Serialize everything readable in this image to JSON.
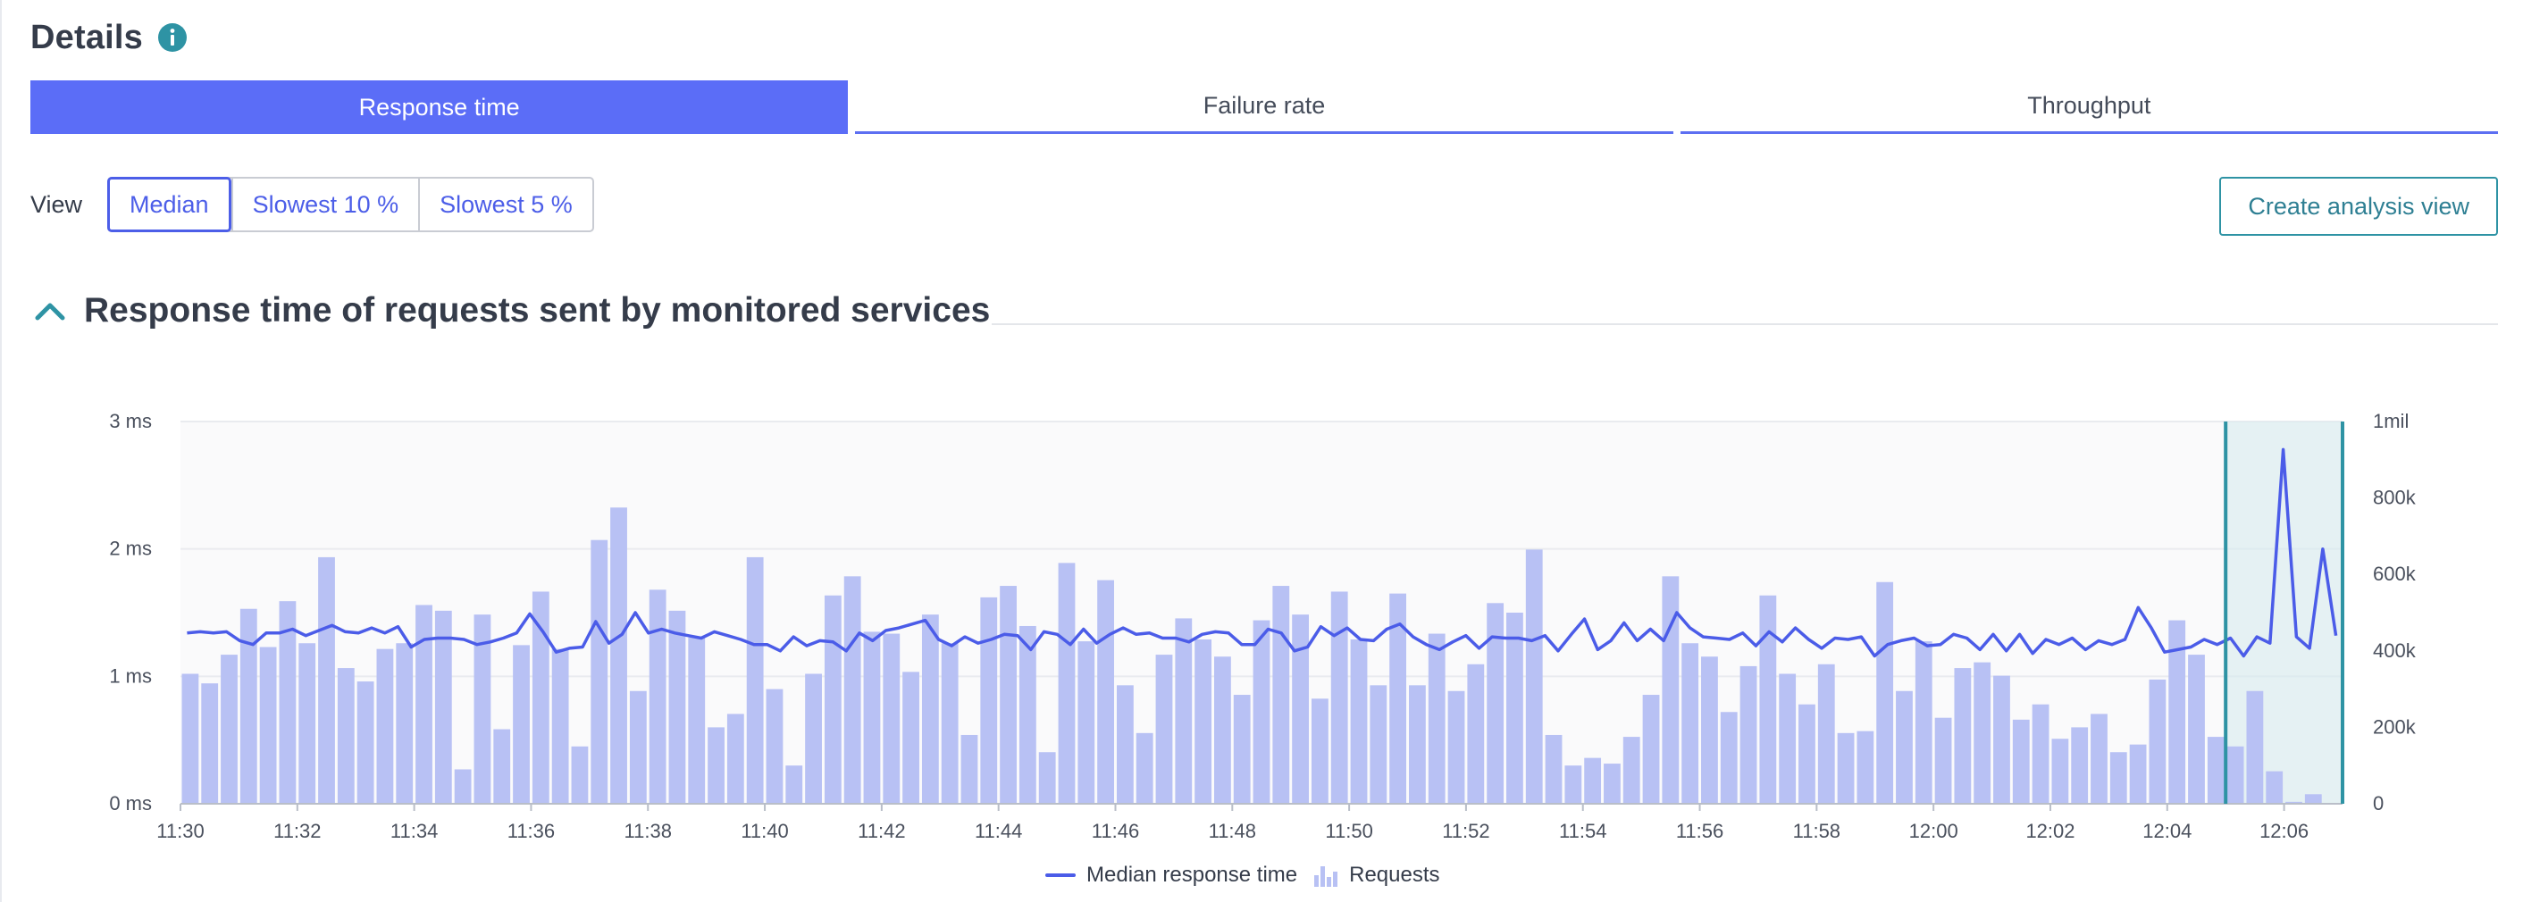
{
  "header": {
    "title": "Details"
  },
  "tabs": [
    {
      "label": "Response time",
      "active": true
    },
    {
      "label": "Failure rate",
      "active": false
    },
    {
      "label": "Throughput",
      "active": false
    }
  ],
  "view": {
    "label": "View",
    "options": [
      "Median",
      "Slowest 10 %",
      "Slowest 5 %"
    ],
    "selected": "Median",
    "create_label": "Create analysis view"
  },
  "section": {
    "title": "Response time of requests sent by monitored services",
    "expanded": true
  },
  "legend": {
    "line": "Median response time",
    "bars": "Requests"
  },
  "colors": {
    "accent": "#5b6df7",
    "bar": "#b8c1f4",
    "line": "#4b5ce8",
    "highlight": "#2e93a4"
  },
  "chart_data": {
    "type": "bar",
    "x_ticks": [
      "11:30",
      "11:32",
      "11:34",
      "11:36",
      "11:38",
      "11:40",
      "11:42",
      "11:44",
      "11:46",
      "11:48",
      "11:50",
      "11:52",
      "11:54",
      "11:56",
      "11:58",
      "12:00",
      "12:02",
      "12:04",
      "12:06"
    ],
    "y_left": {
      "ticks": [
        "0 ms",
        "1 ms",
        "2 ms",
        "3 ms"
      ],
      "range": [
        0,
        3
      ]
    },
    "y_right": {
      "ticks": [
        "0",
        "200k",
        "400k",
        "600k",
        "800k",
        "1mil"
      ],
      "range": [
        0,
        1000000
      ]
    },
    "x_range": [
      "11:30",
      "12:07"
    ],
    "grid": true,
    "legend_position": "bottom-center",
    "highlight_range": [
      "12:05",
      "12:07"
    ],
    "series": [
      {
        "name": "Requests",
        "type": "bar",
        "axis": "right",
        "values": [
          340000,
          315000,
          390000,
          510000,
          410000,
          530000,
          420000,
          645000,
          355000,
          320000,
          405000,
          420000,
          520000,
          505000,
          90000,
          495000,
          195000,
          415000,
          555000,
          405000,
          150000,
          690000,
          775000,
          295000,
          560000,
          505000,
          435000,
          200000,
          235000,
          645000,
          300000,
          100000,
          340000,
          545000,
          595000,
          450000,
          445000,
          345000,
          495000,
          420000,
          180000,
          540000,
          570000,
          465000,
          135000,
          630000,
          425000,
          585000,
          310000,
          185000,
          390000,
          485000,
          430000,
          385000,
          285000,
          480000,
          570000,
          495000,
          275000,
          555000,
          430000,
          310000,
          550000,
          310000,
          445000,
          295000,
          365000,
          525000,
          500000,
          665000,
          180000,
          100000,
          120000,
          105000,
          175000,
          285000,
          595000,
          420000,
          385000,
          240000,
          360000,
          545000,
          340000,
          260000,
          365000,
          185000,
          190000,
          580000,
          295000,
          425000,
          225000,
          355000,
          370000,
          335000,
          220000,
          260000,
          170000,
          200000,
          235000,
          135000,
          155000,
          325000,
          480000,
          390000,
          175000,
          150000,
          295000,
          85000,
          5000,
          25000,
          0
        ],
        "color": "#b8c1f4"
      },
      {
        "name": "Median response time",
        "type": "line",
        "axis": "left",
        "unit": "ms",
        "values": [
          1.34,
          1.35,
          1.34,
          1.35,
          1.28,
          1.25,
          1.34,
          1.34,
          1.37,
          1.32,
          1.36,
          1.4,
          1.35,
          1.34,
          1.38,
          1.34,
          1.39,
          1.23,
          1.29,
          1.3,
          1.3,
          1.29,
          1.25,
          1.27,
          1.3,
          1.34,
          1.49,
          1.35,
          1.19,
          1.22,
          1.23,
          1.43,
          1.26,
          1.33,
          1.5,
          1.34,
          1.37,
          1.34,
          1.32,
          1.3,
          1.35,
          1.32,
          1.29,
          1.25,
          1.25,
          1.2,
          1.31,
          1.24,
          1.28,
          1.27,
          1.2,
          1.34,
          1.28,
          1.36,
          1.38,
          1.41,
          1.44,
          1.29,
          1.24,
          1.31,
          1.26,
          1.29,
          1.33,
          1.32,
          1.21,
          1.35,
          1.33,
          1.25,
          1.37,
          1.26,
          1.33,
          1.38,
          1.33,
          1.34,
          1.3,
          1.3,
          1.27,
          1.33,
          1.35,
          1.34,
          1.25,
          1.25,
          1.37,
          1.34,
          1.2,
          1.23,
          1.39,
          1.32,
          1.38,
          1.29,
          1.28,
          1.37,
          1.41,
          1.31,
          1.25,
          1.21,
          1.27,
          1.32,
          1.22,
          1.31,
          1.3,
          1.3,
          1.28,
          1.32,
          1.2,
          1.33,
          1.45,
          1.21,
          1.28,
          1.42,
          1.28,
          1.37,
          1.28,
          1.5,
          1.38,
          1.31,
          1.3,
          1.29,
          1.34,
          1.24,
          1.35,
          1.27,
          1.38,
          1.29,
          1.22,
          1.3,
          1.29,
          1.31,
          1.16,
          1.25,
          1.28,
          1.3,
          1.24,
          1.25,
          1.33,
          1.3,
          1.21,
          1.33,
          1.2,
          1.33,
          1.18,
          1.29,
          1.25,
          1.3,
          1.21,
          1.28,
          1.25,
          1.29,
          1.54,
          1.38,
          1.19,
          1.21,
          1.23,
          1.29,
          1.25,
          1.3,
          1.16,
          1.31,
          1.26,
          2.78,
          1.31,
          1.22,
          2.0,
          1.32
        ],
        "color": "#4b5ce8"
      }
    ]
  }
}
